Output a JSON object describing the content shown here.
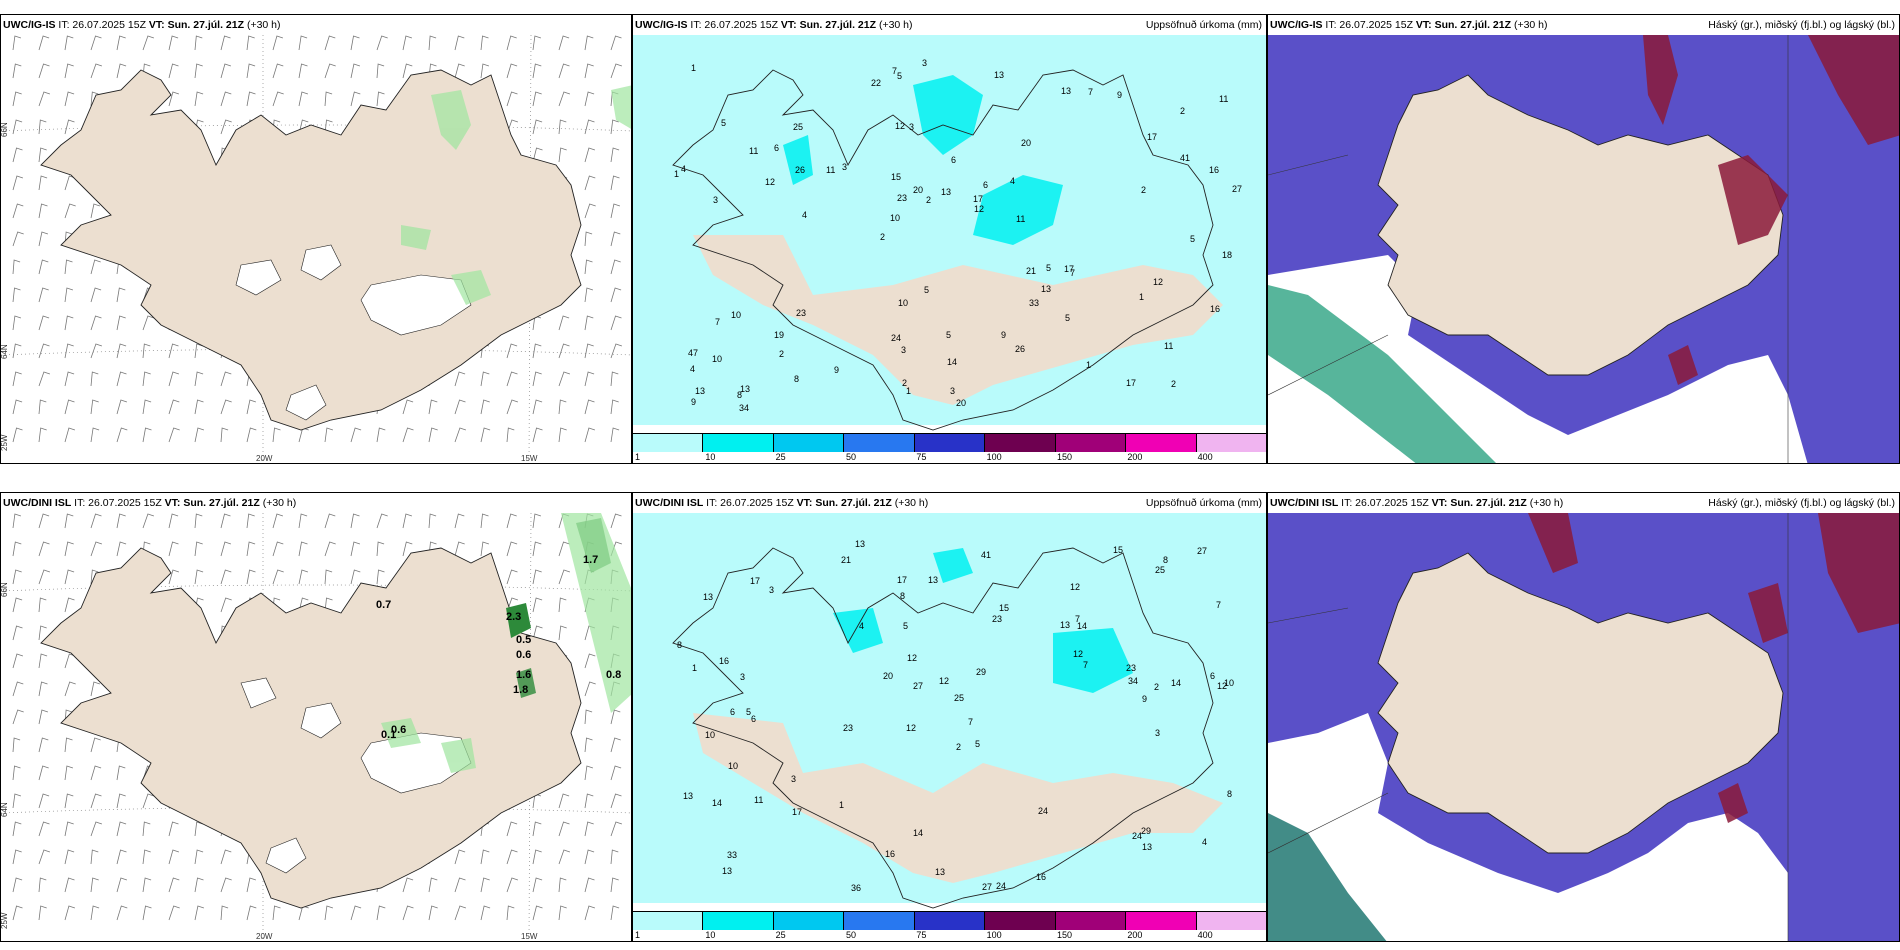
{
  "panels": [
    {
      "model": "UWC/IG-IS",
      "it": "IT: 26.07.2025 15Z",
      "vt": "VT: Sun. 27.júl. 21Z",
      "lead": "(+30 h)",
      "right": ""
    },
    {
      "model": "UWC/IG-IS",
      "it": "IT: 26.07.2025 15Z",
      "vt": "VT: Sun. 27.júl. 21Z",
      "lead": "(+30 h)",
      "right": "Uppsöfnuð úrkoma (mm)"
    },
    {
      "model": "UWC/IG-IS",
      "it": "IT: 26.07.2025 15Z",
      "vt": "VT: Sun. 27.júl. 21Z",
      "lead": "(+30 h)",
      "right": "Háský (gr.), miðský (fj.bl.) og lágský (bl.)"
    },
    {
      "model": "UWC/DINI ISL",
      "it": "IT: 26.07.2025 15Z",
      "vt": "VT: Sun. 27.júl. 21Z",
      "lead": "(+30 h)",
      "right": ""
    },
    {
      "model": "UWC/DINI ISL",
      "it": "IT: 26.07.2025 15Z",
      "vt": "VT: Sun. 27.júl. 21Z",
      "lead": "(+30 h)",
      "right": "Uppsöfnuð úrkoma (mm)"
    },
    {
      "model": "UWC/DINI ISL",
      "it": "IT: 26.07.2025 15Z",
      "vt": "VT: Sun. 27.júl. 21Z",
      "lead": "(+30 h)",
      "right": "Háský (gr.), miðský (fj.bl.) og lágský (bl.)"
    }
  ],
  "axis_labels": {
    "lon20": "20W",
    "lon15": "15W",
    "lon25": "25W",
    "lat66": "66N",
    "lat64": "64N"
  },
  "colorbar": {
    "labels": [
      "1",
      "10",
      "25",
      "50",
      "75",
      "100",
      "150",
      "200",
      "400"
    ],
    "colors": [
      "#b9fbfb",
      "#00f0f0",
      "#00c8f0",
      "#2878f0",
      "#2832c8",
      "#6e0050",
      "#a00078",
      "#f000b4",
      "#f0b4f0"
    ]
  },
  "precip_top": [
    "2",
    "3",
    "2",
    "2",
    "20",
    "13",
    "12",
    "6",
    "10",
    "3",
    "4",
    "2",
    "3",
    "6",
    "7",
    "5",
    "5",
    "27",
    "21",
    "41",
    "10",
    "24",
    "23",
    "25",
    "13",
    "23",
    "17",
    "11",
    "17",
    "20",
    "11",
    "12",
    "33",
    "8",
    "16",
    "17",
    "13",
    "3",
    "12",
    "7",
    "17",
    "11",
    "13",
    "26",
    "19",
    "34",
    "9",
    "5",
    "9",
    "3",
    "4",
    "4",
    "6",
    "7",
    "8",
    "13",
    "22",
    "20",
    "16",
    "10",
    "9",
    "5",
    "26",
    "47",
    "1",
    "11",
    "18",
    "15",
    "14",
    "13",
    "10",
    "11",
    "12",
    "2",
    "2",
    "5",
    "1",
    "3",
    "9",
    "7",
    "5",
    "4",
    "5",
    "2",
    "1",
    "1",
    "1"
  ],
  "precip_bottom": [
    "13",
    "12",
    "12",
    "12",
    "5",
    "5",
    "13",
    "13",
    "10",
    "23",
    "25",
    "13",
    "21",
    "23",
    "27",
    "24",
    "14",
    "15",
    "7",
    "3",
    "3",
    "6",
    "10",
    "14",
    "13",
    "16",
    "27",
    "34",
    "29",
    "14",
    "24",
    "15",
    "11",
    "20",
    "24",
    "8",
    "23",
    "16",
    "27",
    "13",
    "33",
    "36",
    "16",
    "17",
    "13",
    "14",
    "13",
    "7",
    "8",
    "7",
    "8",
    "9",
    "29",
    "25",
    "41",
    "17",
    "12",
    "12",
    "8",
    "5",
    "4",
    "3",
    "3",
    "1",
    "2",
    "1",
    "2",
    "6",
    "4",
    "7",
    "10",
    "17",
    "6",
    "12"
  ],
  "wind_values_bottom": [
    "0.7",
    "2.3",
    "0.5",
    "0.6",
    "1.6",
    "1.8",
    "0.8",
    "0.6",
    "0.1",
    "1.7"
  ]
}
